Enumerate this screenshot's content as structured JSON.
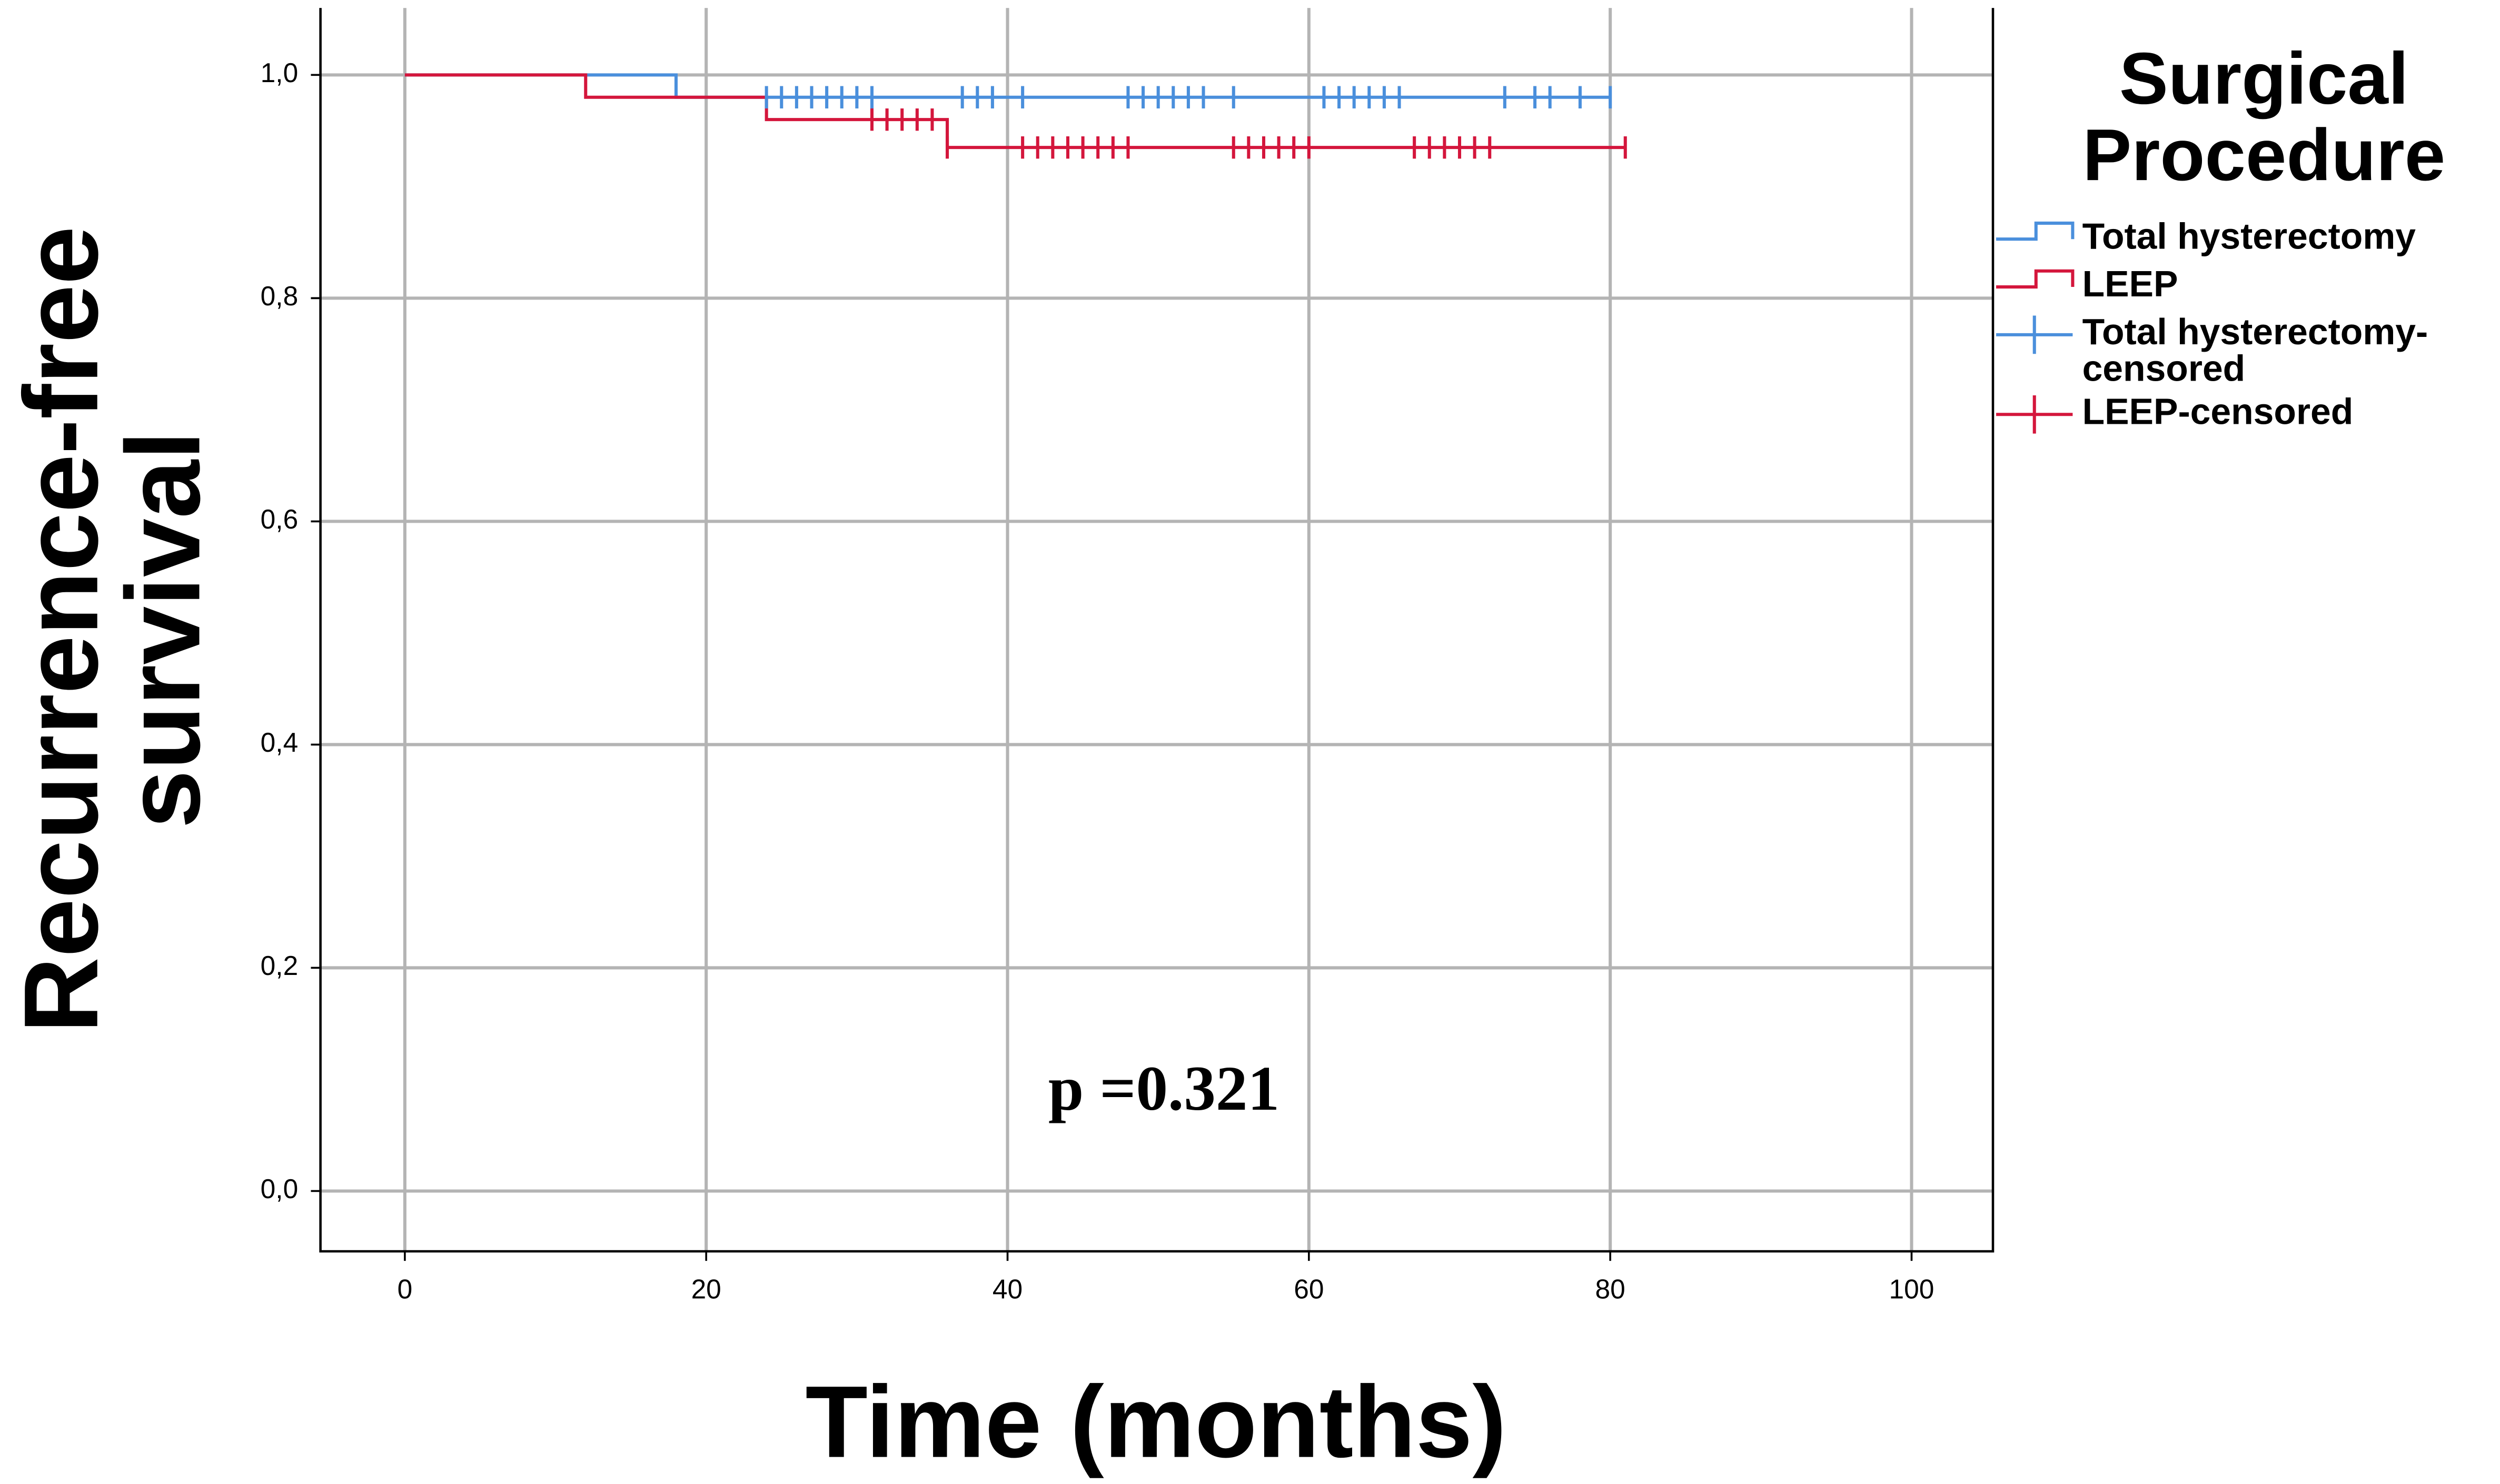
{
  "chart_data": {
    "type": "km",
    "y_label": "Recurrence-free survival",
    "x_label": "Time (months)",
    "legend_title": "Surgical Procedure",
    "annotation": "p =0.321",
    "xlim": [
      -5.6,
      105.4
    ],
    "ylim": [
      -0.054,
      1.06
    ],
    "xticks": [
      0,
      20,
      40,
      60,
      80,
      100
    ],
    "yticks": [
      {
        "value": 0,
        "label": "0,0"
      },
      {
        "value": 0.2,
        "label": "0,2"
      },
      {
        "value": 0.4,
        "label": "0,4"
      },
      {
        "value": 0.6,
        "label": "0,6"
      },
      {
        "value": 0.8,
        "label": "0,8"
      },
      {
        "value": 1.0,
        "label": "1,0"
      }
    ],
    "grid": true,
    "series": [
      {
        "name": "Total hysterectomy",
        "kind": "step",
        "color": "#4a8fdc",
        "x": [
          0,
          18,
          80
        ],
        "values": [
          1.0,
          0.98,
          0.98
        ]
      },
      {
        "name": "LEEP",
        "kind": "step",
        "color": "#d4163c",
        "x": [
          0,
          12,
          24,
          36,
          81
        ],
        "values": [
          1.0,
          0.98,
          0.96,
          0.935,
          0.935
        ]
      },
      {
        "name": "Total hysterectomy-censored",
        "kind": "censored",
        "color": "#4a8fdc",
        "x": [
          24,
          25,
          26,
          27,
          28,
          29,
          30,
          31,
          37,
          38,
          39,
          41,
          48,
          49,
          50,
          51,
          52,
          53,
          55,
          61,
          62,
          63,
          64,
          65,
          66,
          73,
          75,
          76,
          78,
          80
        ],
        "values": [
          0.98,
          0.98,
          0.98,
          0.98,
          0.98,
          0.98,
          0.98,
          0.98,
          0.98,
          0.98,
          0.98,
          0.98,
          0.98,
          0.98,
          0.98,
          0.98,
          0.98,
          0.98,
          0.98,
          0.98,
          0.98,
          0.98,
          0.98,
          0.98,
          0.98,
          0.98,
          0.98,
          0.98,
          0.98,
          0.98
        ]
      },
      {
        "name": "LEEP-censored",
        "kind": "censored",
        "color": "#d4163c",
        "x": [
          31,
          32,
          33,
          34,
          35,
          36,
          41,
          42,
          43,
          44,
          45,
          46,
          47,
          48,
          55,
          56,
          57,
          58,
          59,
          60,
          67,
          68,
          69,
          70,
          71,
          72,
          81
        ],
        "values": [
          0.96,
          0.96,
          0.96,
          0.96,
          0.96,
          0.935,
          0.935,
          0.935,
          0.935,
          0.935,
          0.935,
          0.935,
          0.935,
          0.935,
          0.935,
          0.935,
          0.935,
          0.935,
          0.935,
          0.935,
          0.935,
          0.935,
          0.935,
          0.935,
          0.935,
          0.935,
          0.935
        ]
      }
    ]
  }
}
